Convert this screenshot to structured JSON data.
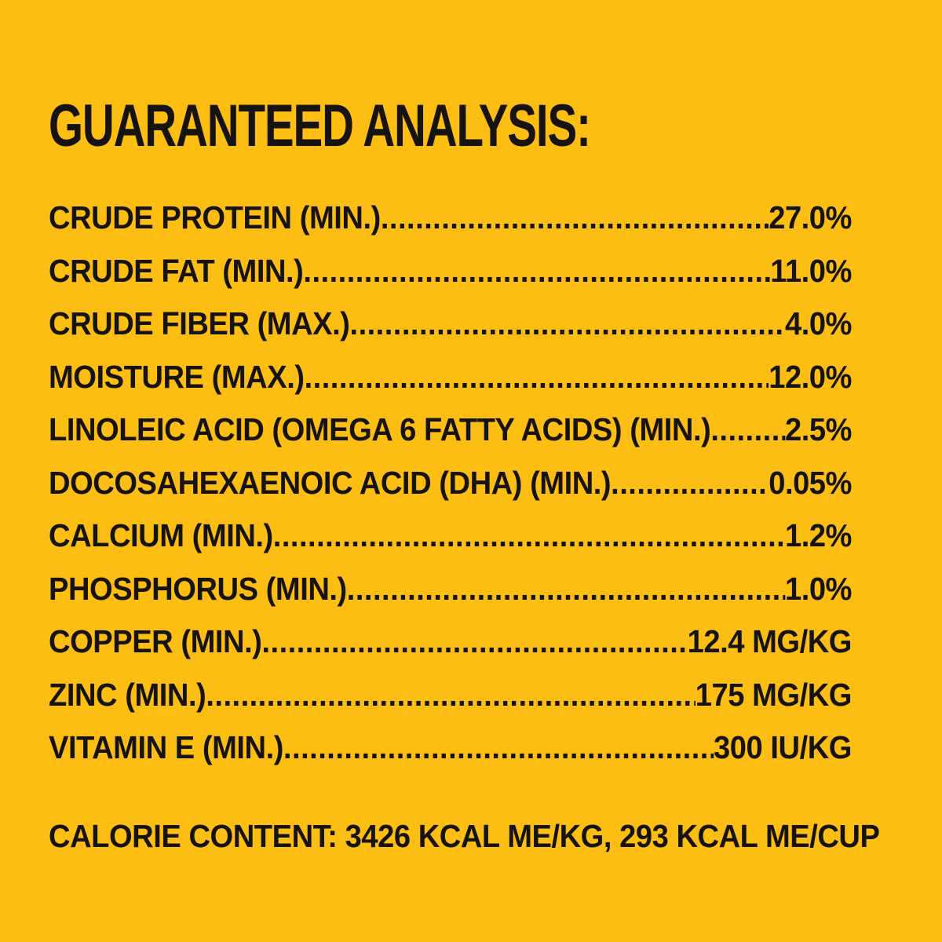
{
  "page": {
    "background_color": "#FCBE13",
    "text_color": "#171310"
  },
  "title": "GUARANTEED ANALYSIS:",
  "analysis": {
    "rows": [
      {
        "label": "CRUDE PROTEIN (MIN.)",
        "value": "27.0%"
      },
      {
        "label": "CRUDE FAT (MIN.)",
        "value": "11.0%"
      },
      {
        "label": "CRUDE FIBER (MAX.)",
        "value": "4.0%"
      },
      {
        "label": "MOISTURE (MAX.)",
        "value": "12.0%"
      },
      {
        "label": "LINOLEIC ACID (OMEGA 6 FATTY ACIDS) (MIN.)",
        "value": "2.5%"
      },
      {
        "label": "DOCOSAHEXAENOIC ACID (DHA) (MIN.)",
        "value": "0.05%"
      },
      {
        "label": "CALCIUM (MIN.)",
        "value": "1.2%"
      },
      {
        "label": "PHOSPHORUS (MIN.)",
        "value": "1.0%"
      },
      {
        "label": "COPPER (MIN.)",
        "value": "12.4 MG/KG"
      },
      {
        "label": "ZINC (MIN.)",
        "value": "175 MG/KG"
      },
      {
        "label": "VITAMIN E (MIN.)",
        "value": "300 IU/KG"
      }
    ]
  },
  "calorie_content": "CALORIE CONTENT: 3426 KCAL ME/KG, 293 KCAL ME/CUP"
}
